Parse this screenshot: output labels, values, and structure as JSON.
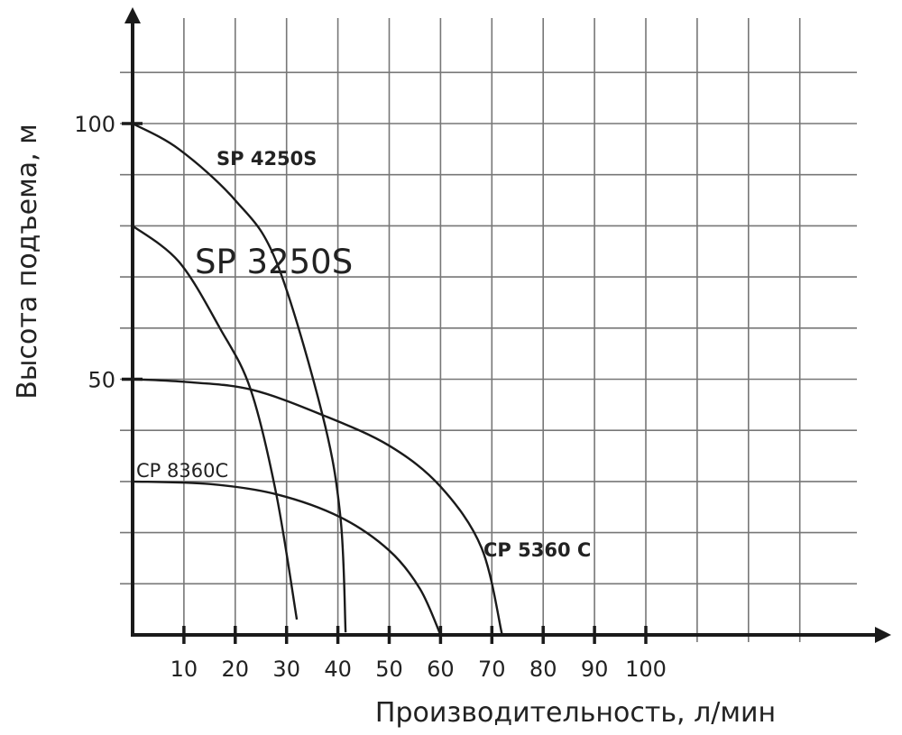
{
  "chart_data": {
    "type": "line",
    "title": "",
    "xlabel": "Производительность, л/мин",
    "ylabel": "Высота подъема, м",
    "xlim": [
      0,
      140
    ],
    "ylim": [
      0,
      120
    ],
    "x_ticks": [
      10,
      20,
      30,
      40,
      50,
      60,
      70,
      80,
      90,
      100
    ],
    "y_ticks": [
      50,
      100
    ],
    "grid": true,
    "grid_step": {
      "x": 10,
      "y": 10
    },
    "line_color": "#1a1a1a",
    "series": [
      {
        "name": "SP 4250S",
        "label_style": "bold",
        "points": [
          [
            0,
            100
          ],
          [
            9,
            95
          ],
          [
            20,
            85
          ],
          [
            28,
            73
          ],
          [
            37,
            43
          ],
          [
            40.5,
            23
          ],
          [
            41.5,
            0.5
          ]
        ]
      },
      {
        "name": "SP 3250S",
        "label_style": "large",
        "points": [
          [
            0,
            80
          ],
          [
            9,
            73
          ],
          [
            17,
            60
          ],
          [
            23,
            48
          ],
          [
            28,
            27.5
          ],
          [
            32,
            3
          ]
        ]
      },
      {
        "name": "CP 5360 C",
        "label_style": "bold",
        "points": [
          [
            0,
            50
          ],
          [
            10,
            49.5
          ],
          [
            23,
            48
          ],
          [
            37,
            43
          ],
          [
            50,
            37
          ],
          [
            60,
            29
          ],
          [
            68,
            17
          ],
          [
            72,
            0
          ]
        ]
      },
      {
        "name": "CP 8360C",
        "label_style": "normal",
        "points": [
          [
            0,
            30
          ],
          [
            15,
            29.5
          ],
          [
            28,
            27.5
          ],
          [
            40.5,
            23
          ],
          [
            50,
            16.5
          ],
          [
            56,
            9
          ],
          [
            60,
            0
          ]
        ]
      }
    ]
  }
}
